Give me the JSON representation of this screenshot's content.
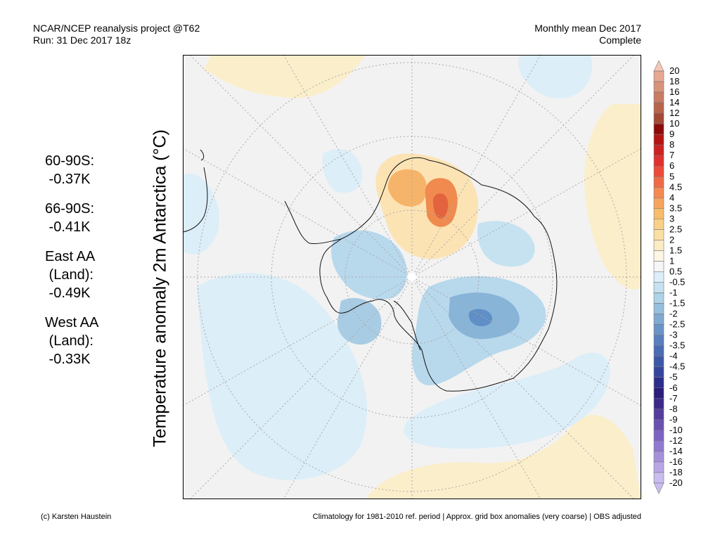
{
  "header": {
    "left_line1": "NCAR/NCEP reanalysis project @T62",
    "left_line2": "Run: 31 Dec 2017 18z",
    "right_line1": "Monthly mean Dec 2017",
    "right_line2": "Complete"
  },
  "axis_title": "Temperature anomaly 2m Antarctica (°C)",
  "stats": [
    {
      "lines": [
        "60-90S:",
        " -0.37K"
      ]
    },
    {
      "lines": [
        "66-90S:",
        " -0.41K"
      ]
    },
    {
      "lines": [
        "East AA",
        " (Land):",
        " -0.49K"
      ]
    },
    {
      "lines": [
        "West AA",
        " (Land):",
        " -0.33K"
      ]
    }
  ],
  "colorbar": {
    "labels": [
      "20",
      "18",
      "16",
      "14",
      "12",
      "10",
      "9",
      "8",
      "7",
      "6",
      "5",
      "4.5",
      "4",
      "3.5",
      "3",
      "2.5",
      "2",
      "1.5",
      "1",
      "0.5",
      "-0.5",
      "-1",
      "-1.5",
      "-2",
      "-2.5",
      "-3",
      "-3.5",
      "-4",
      "-4.5",
      "-5",
      "-6",
      "-7",
      "-8",
      "-9",
      "-10",
      "-12",
      "-14",
      "-16",
      "-18",
      "-20"
    ],
    "colors": [
      "#f5c8b4",
      "#e6a890",
      "#d89478",
      "#c87c62",
      "#b6654c",
      "#a24a36",
      "#8c0a0a",
      "#b41414",
      "#cd2222",
      "#e03030",
      "#ec4a3a",
      "#f06a45",
      "#f48a52",
      "#f6a45e",
      "#f8bc6c",
      "#fad088",
      "#fbe0a4",
      "#fcecc4",
      "#fdf6e4",
      "#f6f6f6",
      "#dceef8",
      "#c6e2f0",
      "#aed2e6",
      "#96c0dc",
      "#7ea9d2",
      "#6a94c8",
      "#587fbe",
      "#4a6cb4",
      "#3c58a8",
      "#34469c",
      "#2c2e8c",
      "#2a1e7a",
      "#3c2a88",
      "#553c9c",
      "#6a50b0",
      "#7e64c2",
      "#927ad0",
      "#a690dc",
      "#b8a6e6",
      "#cabcf0"
    ]
  },
  "map": {
    "colors": {
      "background": "#f2f2f2",
      "coast": "#111111",
      "grid": "#aaaaaa"
    }
  },
  "footer": {
    "left": "(c) Karsten Haustein",
    "right": "Climatology for 1981-2010 ref. period | Approx. grid box anomalies (very coarse) | OBS adjusted"
  }
}
